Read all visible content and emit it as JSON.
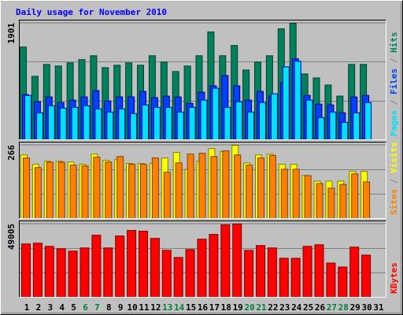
{
  "chart_data": {
    "type": "bar",
    "title": "Daily usage for November 2010",
    "title_color": "#0000ff",
    "categories": [
      "1",
      "2",
      "3",
      "4",
      "5",
      "6",
      "7",
      "8",
      "9",
      "10",
      "11",
      "12",
      "13",
      "14",
      "15",
      "16",
      "17",
      "18",
      "19",
      "20",
      "21",
      "22",
      "23",
      "24",
      "25",
      "26",
      "27",
      "28",
      "29",
      "30",
      "31"
    ],
    "category_colors": [
      "#000000",
      "#000000",
      "#000000",
      "#000000",
      "#000000",
      "#008040",
      "#008040",
      "#000000",
      "#000000",
      "#000000",
      "#000000",
      "#000000",
      "#008040",
      "#008040",
      "#000000",
      "#000000",
      "#000000",
      "#000000",
      "#000000",
      "#008040",
      "#008040",
      "#000000",
      "#000000",
      "#000000",
      "#000000",
      "#000000",
      "#008040",
      "#008040",
      "#000000",
      "#000000",
      "#000000"
    ],
    "separator": " / ",
    "separator_color": "#808080",
    "panels": [
      {
        "ylim": [
          0,
          1901
        ],
        "yticks": [
          1901
        ],
        "series": [
          {
            "name": "Pages",
            "color": "#00e0ff",
            "edge": "#0000c0",
            "values": [
              724,
              440,
              556,
              517,
              530,
              556,
              504,
              453,
              504,
              427,
              569,
              530,
              530,
              453,
              530,
              647,
              841,
              530,
              621,
              453,
              608,
              750,
              1190,
              1281,
              647,
              362,
              453,
              285,
              440,
              608,
              null
            ]
          },
          {
            "name": "Files",
            "color": "#0040ff",
            "edge": "#000080",
            "values": [
              737,
              621,
              699,
              608,
              647,
              699,
              802,
              634,
              699,
              699,
              789,
              686,
              712,
              699,
              595,
              776,
              880,
              1048,
              880,
              647,
              789,
              712,
              931,
              1320,
              724,
              582,
              569,
              440,
              699,
              724,
              null
            ]
          },
          {
            "name": "Hits",
            "color": "#00805c",
            "edge": "#004030",
            "values": [
              1513,
              1035,
              1229,
              1203,
              1255,
              1307,
              1371,
              1177,
              1216,
              1255,
              1216,
              1371,
              1268,
              1113,
              1203,
              1371,
              1759,
              1371,
              1539,
              1138,
              1268,
              1371,
              1811,
              1901,
              1074,
              1009,
              893,
              712,
              1229,
              1229,
              null
            ]
          }
        ]
      },
      {
        "ylim": [
          0,
          266
        ],
        "yticks": [
          266
        ],
        "series": [
          {
            "name": "Sites",
            "color": "#ff8000",
            "edge": "#804000",
            "values": [
              220,
              185,
              205,
              205,
              194,
              191,
              223,
              205,
              225,
              197,
              197,
              220,
              168,
              202,
              234,
              237,
              225,
              246,
              231,
              194,
              220,
              229,
              179,
              179,
              156,
              127,
              110,
              124,
              162,
              133,
              null
            ]
          },
          {
            "name": "Visits",
            "color": "#ffff00",
            "edge": "#808000",
            "values": [
              231,
              197,
              208,
              208,
              205,
              197,
              234,
              211,
              214,
              200,
              200,
              200,
              220,
              240,
              179,
              208,
              254,
              243,
              266,
              202,
              231,
              234,
              197,
              197,
              156,
              136,
              136,
              136,
              171,
              171,
              null
            ]
          }
        ]
      },
      {
        "ylim": [
          0,
          49005
        ],
        "yticks": [
          49005
        ],
        "series": [
          {
            "name": "KBytes",
            "color": "#ff0000",
            "edge": "#800000",
            "values": [
              35690,
              36222,
              34091,
              32493,
              30895,
              33026,
              41548,
              33026,
              41016,
              44744,
              44212,
              39417,
              31427,
              26633,
              31960,
              38885,
              42081,
              48473,
              49005,
              31427,
              34623,
              33026,
              26101,
              26101,
              34091,
              35157,
              22904,
              20241,
              33558,
              28232,
              null
            ]
          }
        ]
      }
    ]
  }
}
